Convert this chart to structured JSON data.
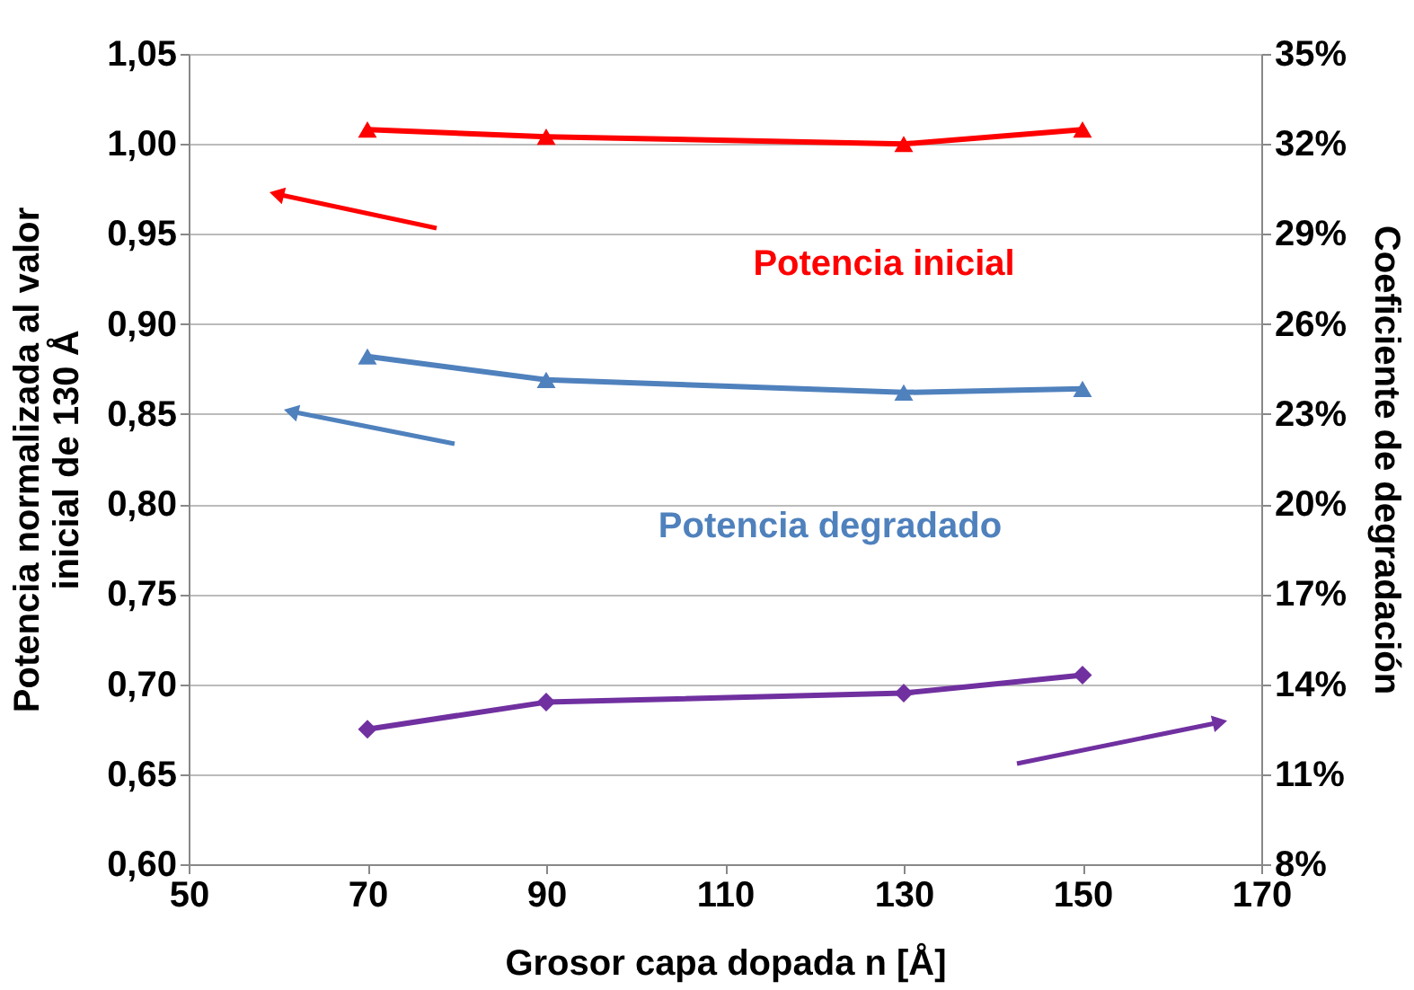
{
  "chart_data": {
    "type": "line",
    "xlabel": "Grosor capa dopada n [Å]",
    "ylabel": "Potencia normalizada al valor\ninicial de 130 Å",
    "y2label": "Coeficiente de degradación",
    "x": [
      70,
      90,
      130,
      150
    ],
    "series": [
      {
        "name": "Potencia inicial",
        "color": "#ff0000",
        "marker": "triangle",
        "values": [
          1.008,
          1.004,
          1.0,
          1.008
        ]
      },
      {
        "name": "Potencia degradado",
        "color": "#4f81bd",
        "marker": "triangle",
        "values": [
          0.882,
          0.869,
          0.862,
          0.864
        ]
      },
      {
        "color": "#7030a0",
        "marker": "diamond",
        "axis": "y2",
        "values": [
          12.5,
          13.4,
          13.7,
          14.3
        ]
      }
    ],
    "xlim": [
      50,
      170
    ],
    "xticks": [
      50,
      70,
      90,
      110,
      130,
      150,
      170
    ],
    "ylim": [
      0.6,
      1.05
    ],
    "yticks": [
      {
        "value": 0.6,
        "label": "0,60"
      },
      {
        "value": 0.65,
        "label": "0,65"
      },
      {
        "value": 0.7,
        "label": "0,70"
      },
      {
        "value": 0.75,
        "label": "0,75"
      },
      {
        "value": 0.8,
        "label": "0,80"
      },
      {
        "value": 0.85,
        "label": "0,85"
      },
      {
        "value": 0.9,
        "label": "0,90"
      },
      {
        "value": 0.95,
        "label": "0,95"
      },
      {
        "value": 1.0,
        "label": "1,00"
      },
      {
        "value": 1.05,
        "label": "1,05"
      }
    ],
    "y2lim": [
      8,
      35
    ],
    "y2ticks": [
      {
        "value": 8,
        "label": "8%"
      },
      {
        "value": 11,
        "label": "11%"
      },
      {
        "value": 14,
        "label": "14%"
      },
      {
        "value": 17,
        "label": "17%"
      },
      {
        "value": 20,
        "label": "20%"
      },
      {
        "value": 23,
        "label": "23%"
      },
      {
        "value": 26,
        "label": "26%"
      },
      {
        "value": 29,
        "label": "29%"
      },
      {
        "value": 32,
        "label": "32%"
      },
      {
        "value": 35,
        "label": "35%"
      }
    ],
    "grid": "y",
    "legend": false,
    "line_style": "solid"
  }
}
